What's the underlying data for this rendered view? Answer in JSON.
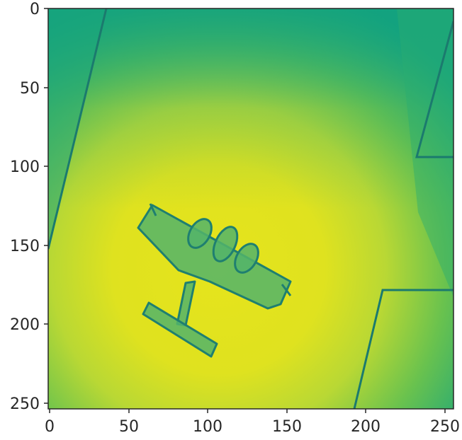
{
  "image_axes": {
    "x_ticks": [
      "0",
      "50",
      "100",
      "150",
      "200",
      "250"
    ],
    "y_ticks": [
      "0",
      "50",
      "100",
      "150",
      "200",
      "250"
    ],
    "x_range": [
      0,
      256
    ],
    "y_range": [
      0,
      256
    ],
    "y_direction": "top-down",
    "colormap": "viridis-like (green to yellow)",
    "content": "single-channel heatmap image of an airplane viewed from above on a runway",
    "colors": {
      "low": "#12a37f",
      "mid": "#6cc24a",
      "high": "#e4e21b",
      "outline": "#1a6f6a",
      "axis": "#262626"
    }
  }
}
